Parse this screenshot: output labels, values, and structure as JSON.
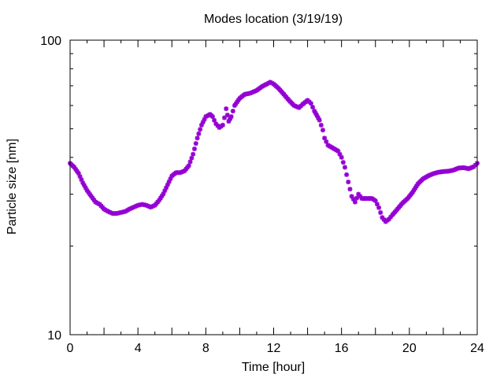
{
  "chart_data": {
    "type": "scatter",
    "title": "Modes location (3/19/19)",
    "xlabel": "Time [hour]",
    "ylabel": "Particle size [nm]",
    "xlim": [
      0,
      24
    ],
    "ylim": [
      10,
      100
    ],
    "yscale": "log",
    "grid": false,
    "legend": "none",
    "x_ticks": [
      "0",
      "4",
      "8",
      "12",
      "16",
      "20",
      "24"
    ],
    "y_ticks": [
      "10",
      "100"
    ],
    "marker_color": "#9400d3",
    "series": [
      {
        "points": [
          [
            0.0,
            38.2
          ],
          [
            0.25,
            37.0
          ],
          [
            0.5,
            35.3
          ],
          [
            0.75,
            32.8
          ],
          [
            1.0,
            30.9
          ],
          [
            1.25,
            29.5
          ],
          [
            1.5,
            28.2
          ],
          [
            1.75,
            27.7
          ],
          [
            2.0,
            26.7
          ],
          [
            2.25,
            26.2
          ],
          [
            2.5,
            25.8
          ],
          [
            2.75,
            25.8
          ],
          [
            3.0,
            26.0
          ],
          [
            3.25,
            26.2
          ],
          [
            3.5,
            26.7
          ],
          [
            3.75,
            27.1
          ],
          [
            4.0,
            27.5
          ],
          [
            4.25,
            27.7
          ],
          [
            4.5,
            27.5
          ],
          [
            4.75,
            27.1
          ],
          [
            5.0,
            27.5
          ],
          [
            5.25,
            28.6
          ],
          [
            5.5,
            30.1
          ],
          [
            5.75,
            32.3
          ],
          [
            6.0,
            34.6
          ],
          [
            6.25,
            35.5
          ],
          [
            6.5,
            35.5
          ],
          [
            6.75,
            36.0
          ],
          [
            7.0,
            37.5
          ],
          [
            7.25,
            41.0
          ],
          [
            7.5,
            46.5
          ],
          [
            7.75,
            51.5
          ],
          [
            8.0,
            55.0
          ],
          [
            8.25,
            56.0
          ],
          [
            8.4,
            55.0
          ],
          [
            8.6,
            52.0
          ],
          [
            8.8,
            50.5
          ],
          [
            9.0,
            51.5
          ],
          [
            9.1,
            54.5
          ],
          [
            9.2,
            58.5
          ],
          [
            9.35,
            53.0
          ],
          [
            9.5,
            55.0
          ],
          [
            9.7,
            60.0
          ],
          [
            10.0,
            63.5
          ],
          [
            10.3,
            65.5
          ],
          [
            10.6,
            66.0
          ],
          [
            11.0,
            67.5
          ],
          [
            11.3,
            69.5
          ],
          [
            11.6,
            71.0
          ],
          [
            11.8,
            72.0
          ],
          [
            12.0,
            71.0
          ],
          [
            12.3,
            68.5
          ],
          [
            12.6,
            65.5
          ],
          [
            12.9,
            62.5
          ],
          [
            13.2,
            60.0
          ],
          [
            13.5,
            59.0
          ],
          [
            13.7,
            60.5
          ],
          [
            14.0,
            62.5
          ],
          [
            14.2,
            61.0
          ],
          [
            14.4,
            57.5
          ],
          [
            14.7,
            53.5
          ],
          [
            14.9,
            49.5
          ],
          [
            15.0,
            46.5
          ],
          [
            15.2,
            44.0
          ],
          [
            15.5,
            43.0
          ],
          [
            15.8,
            42.0
          ],
          [
            16.0,
            40.0
          ],
          [
            16.2,
            37.0
          ],
          [
            16.4,
            33.0
          ],
          [
            16.6,
            29.5
          ],
          [
            16.8,
            28.2
          ],
          [
            17.0,
            30.0
          ],
          [
            17.2,
            29.0
          ],
          [
            17.5,
            29.0
          ],
          [
            17.8,
            29.0
          ],
          [
            18.0,
            28.5
          ],
          [
            18.2,
            27.0
          ],
          [
            18.4,
            25.0
          ],
          [
            18.6,
            24.2
          ],
          [
            18.8,
            24.7
          ],
          [
            19.0,
            25.5
          ],
          [
            19.3,
            26.7
          ],
          [
            19.6,
            28.0
          ],
          [
            19.9,
            29.0
          ],
          [
            20.2,
            30.5
          ],
          [
            20.5,
            32.5
          ],
          [
            20.8,
            33.8
          ],
          [
            21.1,
            34.6
          ],
          [
            21.4,
            35.2
          ],
          [
            21.7,
            35.6
          ],
          [
            22.0,
            35.8
          ],
          [
            22.3,
            35.9
          ],
          [
            22.6,
            36.2
          ],
          [
            22.9,
            36.8
          ],
          [
            23.2,
            36.9
          ],
          [
            23.5,
            36.6
          ],
          [
            23.8,
            37.2
          ],
          [
            24.0,
            38.2
          ]
        ]
      }
    ]
  }
}
